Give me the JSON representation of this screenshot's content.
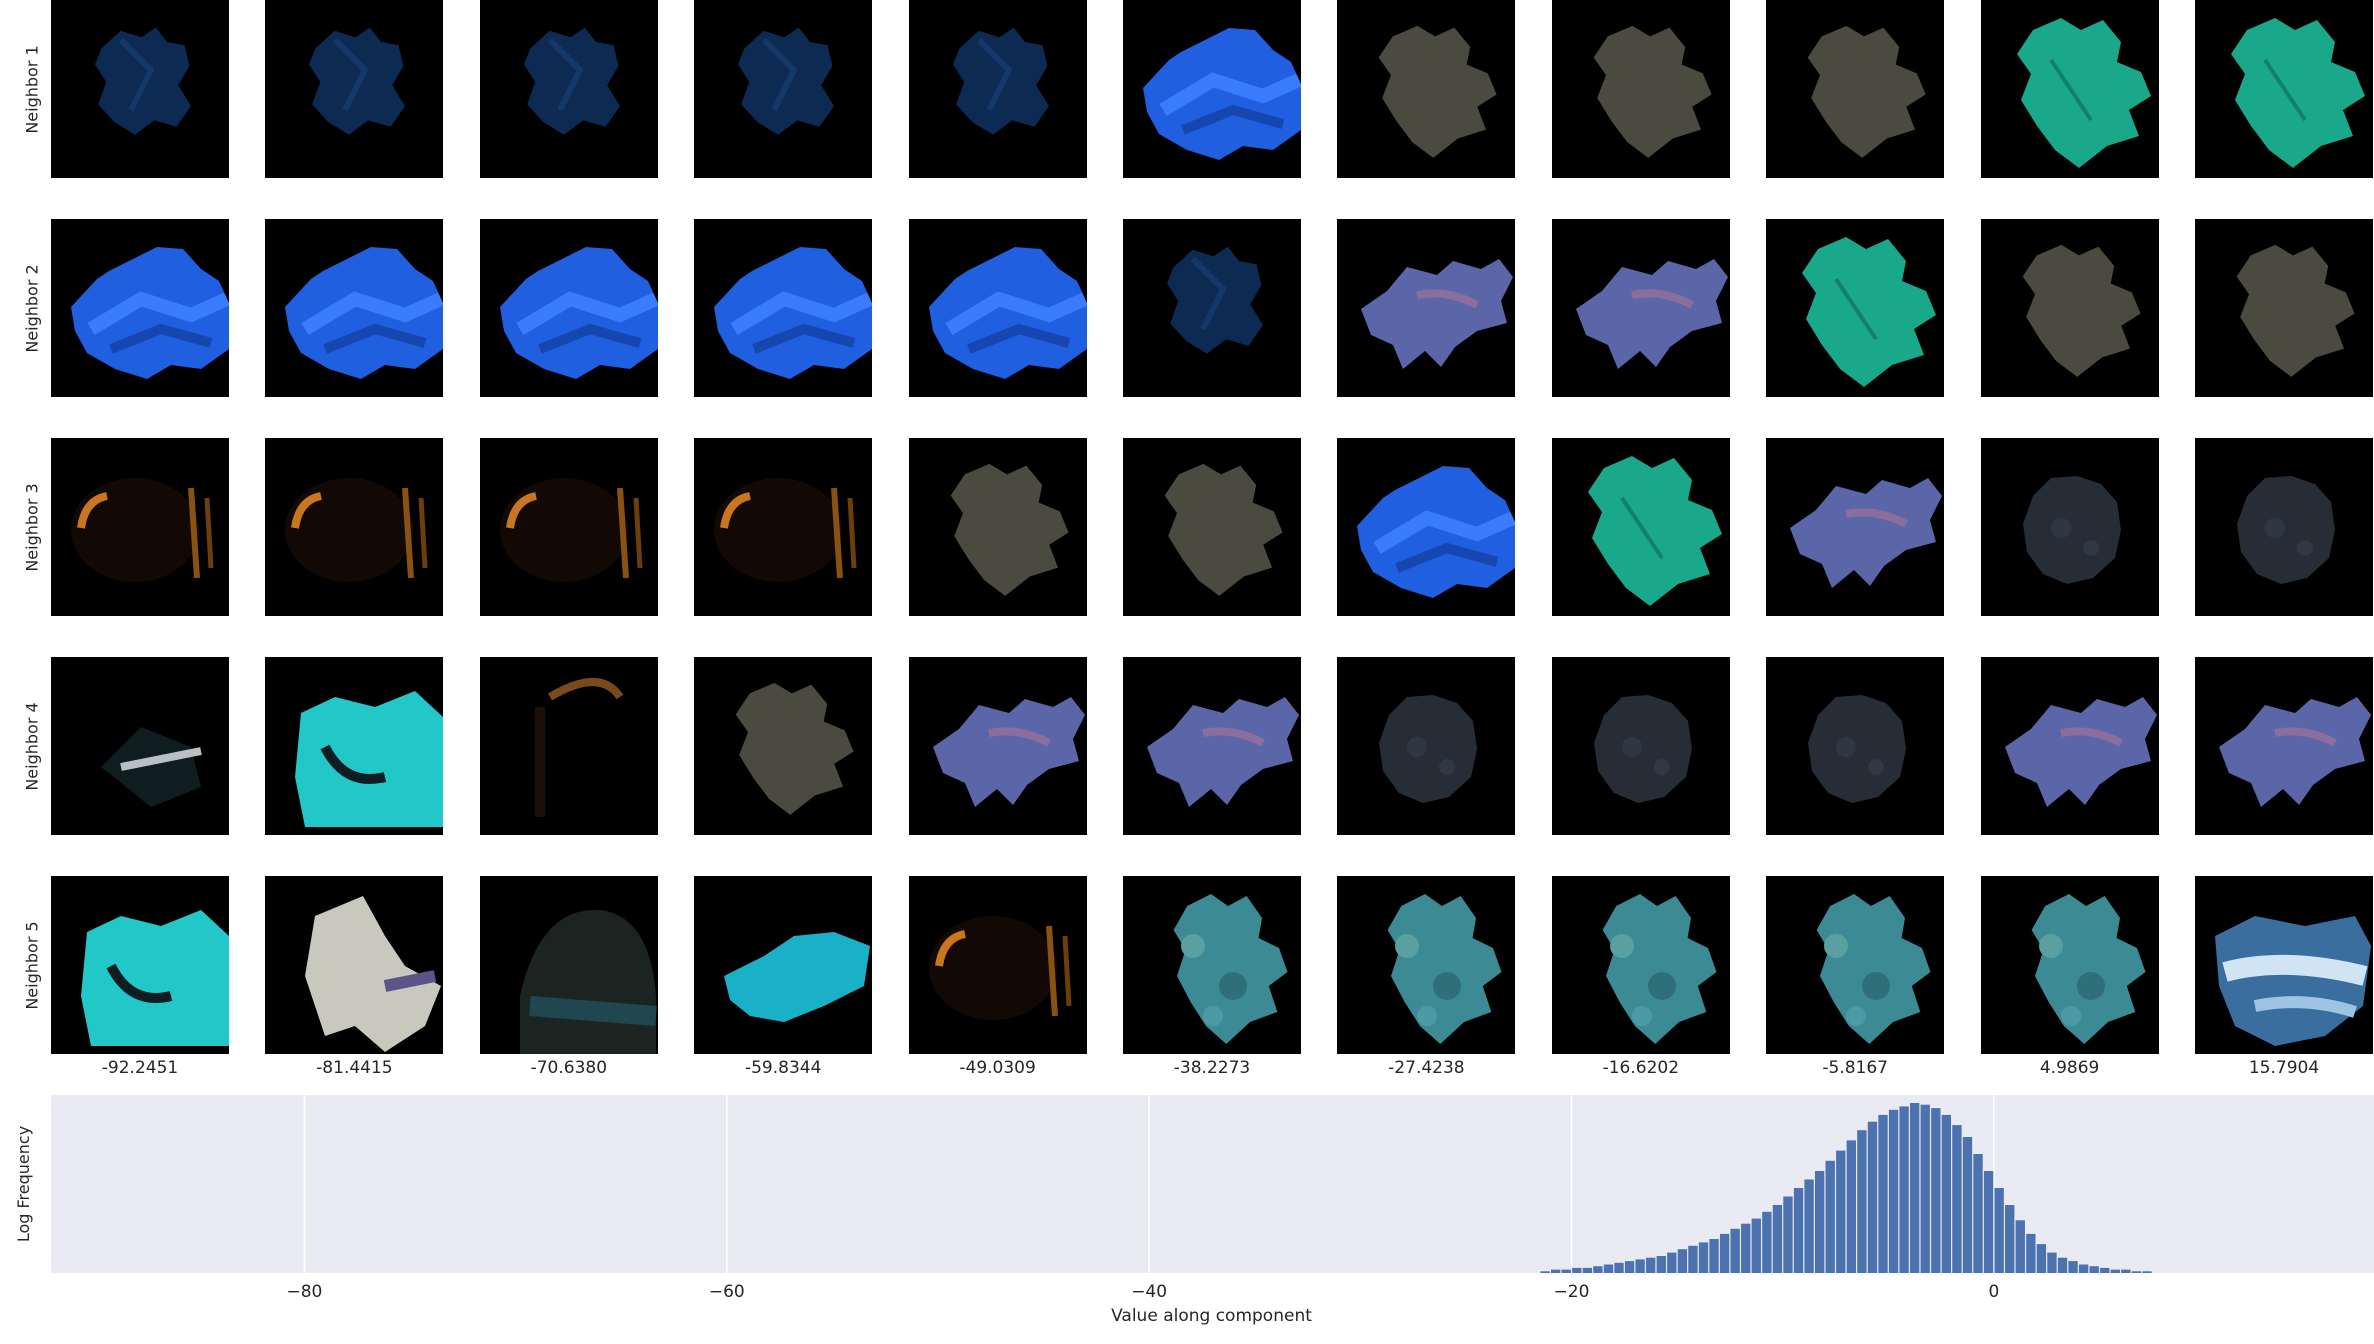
{
  "rows": [
    "Neighbor 1",
    "Neighbor 2",
    "Neighbor 3",
    "Neighbor 4",
    "Neighbor 5"
  ],
  "columns": [
    "-92.2451",
    "-81.4415",
    "-70.6380",
    "-59.8344",
    "-49.0309",
    "-38.2273",
    "-27.4238",
    "-16.6202",
    "-5.8167",
    "4.9869",
    "15.7904"
  ],
  "thumbnails": [
    [
      "dim-blue-crumpled",
      "dim-blue-crumpled",
      "dim-blue-crumpled",
      "dim-blue-crumpled",
      "dim-blue-crumpled",
      "bright-blue-sheet",
      "grey-shape",
      "grey-shape",
      "grey-shape",
      "teal-leaf",
      "teal-leaf"
    ],
    [
      "bright-blue-sheet",
      "bright-blue-sheet",
      "bright-blue-sheet",
      "bright-blue-sheet",
      "bright-blue-sheet",
      "dim-blue-crumpled",
      "lavender-splash",
      "lavender-splash",
      "teal-leaf",
      "grey-shape",
      "grey-shape"
    ],
    [
      "orange-lit-object",
      "orange-lit-object",
      "orange-lit-object",
      "orange-lit-object",
      "grey-shape",
      "grey-shape",
      "bright-blue-sheet",
      "teal-leaf",
      "lavender-splash",
      "dark-rock",
      "dark-rock"
    ],
    [
      "dark-cyan-object",
      "cyan-sheet",
      "orange-edge",
      "grey-shape",
      "lavender-splash",
      "lavender-splash",
      "dark-rock",
      "dark-rock",
      "dark-rock",
      "lavender-splash",
      "lavender-splash"
    ],
    [
      "cyan-sheet",
      "white-crumpled",
      "dark-helmet",
      "cyan-splash",
      "orange-lit-object",
      "teal-textured",
      "teal-textured",
      "teal-textured",
      "teal-textured",
      "teal-textured",
      "blue-white-cloud"
    ]
  ],
  "colors": {
    "plot_bg": "#eaeaf2",
    "bar": "#4c72b0",
    "grid": "#ffffff",
    "text": "#262626"
  },
  "chart_data": {
    "type": "bar",
    "title": "",
    "xlabel": "Value along component",
    "ylabel": "Log Frequency",
    "xlim": [
      -92,
      18
    ],
    "xticks": [
      -80,
      -60,
      -40,
      -20,
      0
    ],
    "xtick_labels": [
      "−80",
      "−60",
      "−40",
      "−20",
      "0"
    ],
    "grid": true,
    "y_scale": "log",
    "bin_width": 0.5,
    "x": [
      -21.25,
      -20.75,
      -20.25,
      -19.75,
      -19.25,
      -18.75,
      -18.25,
      -17.75,
      -17.25,
      -16.75,
      -16.25,
      -15.75,
      -15.25,
      -14.75,
      -14.25,
      -13.75,
      -13.25,
      -12.75,
      -12.25,
      -11.75,
      -11.25,
      -10.75,
      -10.25,
      -9.75,
      -9.25,
      -8.75,
      -8.25,
      -7.75,
      -7.25,
      -6.75,
      -6.25,
      -5.75,
      -5.25,
      -4.75,
      -4.25,
      -3.75,
      -3.25,
      -2.75,
      -2.25,
      -1.75,
      -1.25,
      -0.75,
      -0.25,
      0.25,
      0.75,
      1.25,
      1.75,
      2.25,
      2.75,
      3.25,
      3.75,
      4.25,
      4.75,
      5.25,
      5.75,
      6.25,
      6.75,
      7.25
    ],
    "heights": [
      0.01,
      0.02,
      0.02,
      0.03,
      0.03,
      0.04,
      0.05,
      0.06,
      0.07,
      0.08,
      0.09,
      0.1,
      0.12,
      0.14,
      0.16,
      0.18,
      0.2,
      0.23,
      0.26,
      0.29,
      0.32,
      0.36,
      0.4,
      0.45,
      0.5,
      0.55,
      0.6,
      0.66,
      0.72,
      0.78,
      0.84,
      0.89,
      0.93,
      0.96,
      0.98,
      1.0,
      0.99,
      0.97,
      0.93,
      0.87,
      0.8,
      0.7,
      0.6,
      0.5,
      0.4,
      0.31,
      0.23,
      0.17,
      0.12,
      0.09,
      0.07,
      0.05,
      0.04,
      0.03,
      0.02,
      0.02,
      0.01,
      0.01
    ]
  }
}
